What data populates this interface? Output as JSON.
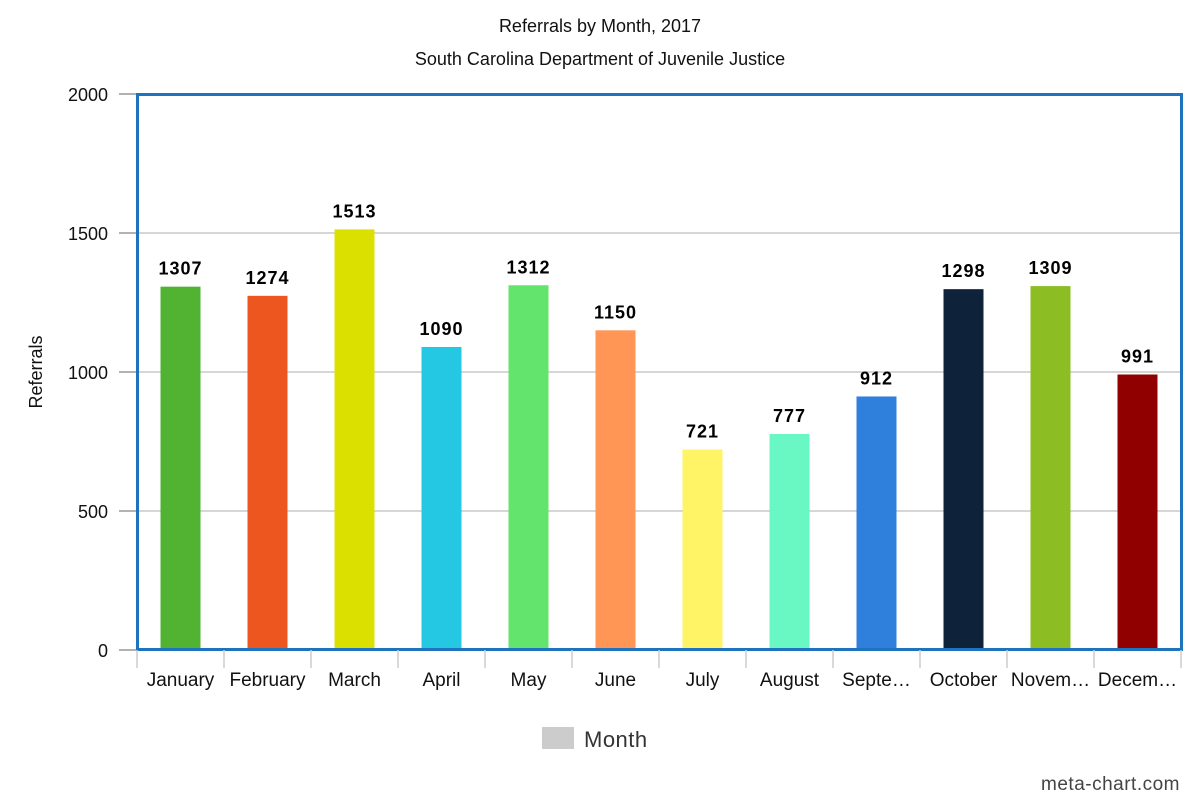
{
  "chart_data": {
    "type": "bar",
    "title": "Referrals by Month, 2017",
    "subtitle": "South Carolina Department of Juvenile Justice",
    "xlabel": "",
    "ylabel": "Referrals",
    "ylim": [
      0,
      2000
    ],
    "yticks": [
      0,
      500,
      1000,
      1500,
      2000
    ],
    "grid": true,
    "categories": [
      "January",
      "February",
      "March",
      "April",
      "May",
      "June",
      "July",
      "August",
      "Septe…",
      "October",
      "Novem…",
      "Decem…"
    ],
    "series": [
      {
        "name": "Month",
        "values": [
          1307,
          1274,
          1513,
          1090,
          1312,
          1150,
          721,
          777,
          912,
          1298,
          1309,
          991
        ],
        "colors": [
          "#52b332",
          "#ee561f",
          "#dce000",
          "#25c8e2",
          "#62e46d",
          "#ff9656",
          "#fff366",
          "#69f7c3",
          "#2f80dc",
          "#0e233a",
          "#8cbd23",
          "#900000"
        ]
      }
    ],
    "legend": {
      "position": "bottom",
      "swatch_color": "#cccccc",
      "label": "Month"
    },
    "frame_color": "#1e73be",
    "watermark": "meta-chart.com"
  }
}
